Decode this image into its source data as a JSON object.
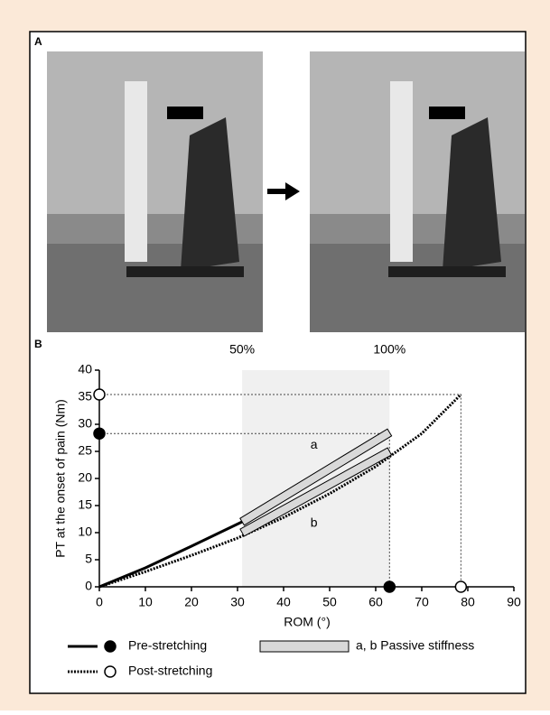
{
  "panel_a": {
    "label": "A"
  },
  "chart_data": {
    "type": "line",
    "panel_label": "B",
    "xlabel": "ROM (°)",
    "ylabel": "PT at the onset of pain (Nm)",
    "xlim": [
      0,
      90
    ],
    "ylim": [
      0,
      40
    ],
    "xticks": [
      0,
      10,
      20,
      30,
      40,
      50,
      60,
      70,
      80,
      90
    ],
    "yticks": [
      0,
      5,
      10,
      15,
      20,
      25,
      30,
      35,
      40
    ],
    "shaded": {
      "x": [
        31,
        63
      ],
      "labels": [
        "50%",
        "100%"
      ],
      "color": "#f0f0f0"
    },
    "series": [
      {
        "name": "Pre-stretching",
        "color": "#000000",
        "style": "solid",
        "marker": "filled",
        "x": [
          0,
          10,
          20,
          31
        ],
        "values": [
          0,
          3.5,
          7.5,
          12
        ],
        "end_x": 63,
        "end_y": 28.3
      },
      {
        "name": "Post-stretching",
        "color": "#000000",
        "style": "dotted",
        "marker": "open",
        "x": [
          0,
          10,
          20,
          30,
          40,
          50,
          60,
          70,
          78.5
        ],
        "values": [
          0,
          2.8,
          5.8,
          9,
          12.8,
          17.2,
          22.2,
          28.3,
          35.5
        ],
        "end_x": 78.5,
        "end_y": 35.5
      }
    ],
    "stiffness": {
      "name": "a, b Passive stiffness",
      "color": "#d9d9d9",
      "segments": [
        {
          "label": "a",
          "x": [
            31,
            63
          ],
          "values": [
            12,
            28.5
          ]
        },
        {
          "label": "b",
          "x": [
            31,
            63
          ],
          "values": [
            10,
            25
          ]
        }
      ]
    }
  }
}
